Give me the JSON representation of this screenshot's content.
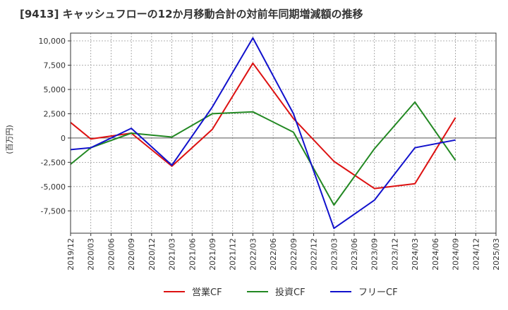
{
  "chart_data": {
    "type": "line",
    "title": "[9413]  キャッシュフローの12か月移動合計の対前年同期増減額の推移",
    "ylabel": "(百万円)",
    "xlabel": "",
    "ylim": [
      -9800,
      10800
    ],
    "yticks": [
      10000,
      7500,
      5000,
      2500,
      0,
      -2500,
      -5000,
      -7500
    ],
    "ytick_labels": [
      "10,000",
      "7,500",
      "5,000",
      "2,500",
      "0",
      "-2,500",
      "-5,000",
      "-7,500"
    ],
    "categories": [
      "2019/12",
      "2020/03",
      "2020/06",
      "2020/09",
      "2020/12",
      "2021/03",
      "2021/06",
      "2021/09",
      "2021/12",
      "2022/03",
      "2022/06",
      "2022/09",
      "2022/12",
      "2023/03",
      "2023/06",
      "2023/09",
      "2023/12",
      "2024/03",
      "2024/06",
      "2024/09",
      "2024/12",
      "2025/03"
    ],
    "grid": true,
    "legend_position": "bottom",
    "series": [
      {
        "name": "営業CF",
        "color": "#dd1111",
        "points": [
          [
            "2019/12",
            1600
          ],
          [
            "2020/03",
            -100
          ],
          [
            "2020/09",
            500
          ],
          [
            "2021/03",
            -2900
          ],
          [
            "2021/09",
            900
          ],
          [
            "2022/03",
            7700
          ],
          [
            "2022/09",
            2000
          ],
          [
            "2023/03",
            -2400
          ],
          [
            "2023/09",
            -5200
          ],
          [
            "2024/03",
            -4700
          ],
          [
            "2024/09",
            2100
          ]
        ]
      },
      {
        "name": "投資CF",
        "color": "#228822",
        "points": [
          [
            "2019/12",
            -2700
          ],
          [
            "2020/03",
            -1000
          ],
          [
            "2020/09",
            500
          ],
          [
            "2021/03",
            100
          ],
          [
            "2021/09",
            2500
          ],
          [
            "2022/03",
            2700
          ],
          [
            "2022/09",
            600
          ],
          [
            "2023/03",
            -6900
          ],
          [
            "2023/09",
            -1100
          ],
          [
            "2024/03",
            3700
          ],
          [
            "2024/09",
            -2300
          ]
        ]
      },
      {
        "name": "フリーCF",
        "color": "#1111cc",
        "points": [
          [
            "2019/12",
            -1200
          ],
          [
            "2020/03",
            -1000
          ],
          [
            "2020/09",
            1000
          ],
          [
            "2021/03",
            -2800
          ],
          [
            "2021/09",
            3200
          ],
          [
            "2022/03",
            10300
          ],
          [
            "2022/09",
            2500
          ],
          [
            "2023/03",
            -9300
          ],
          [
            "2023/09",
            -6400
          ],
          [
            "2024/03",
            -1000
          ],
          [
            "2024/09",
            -200
          ]
        ]
      }
    ]
  }
}
